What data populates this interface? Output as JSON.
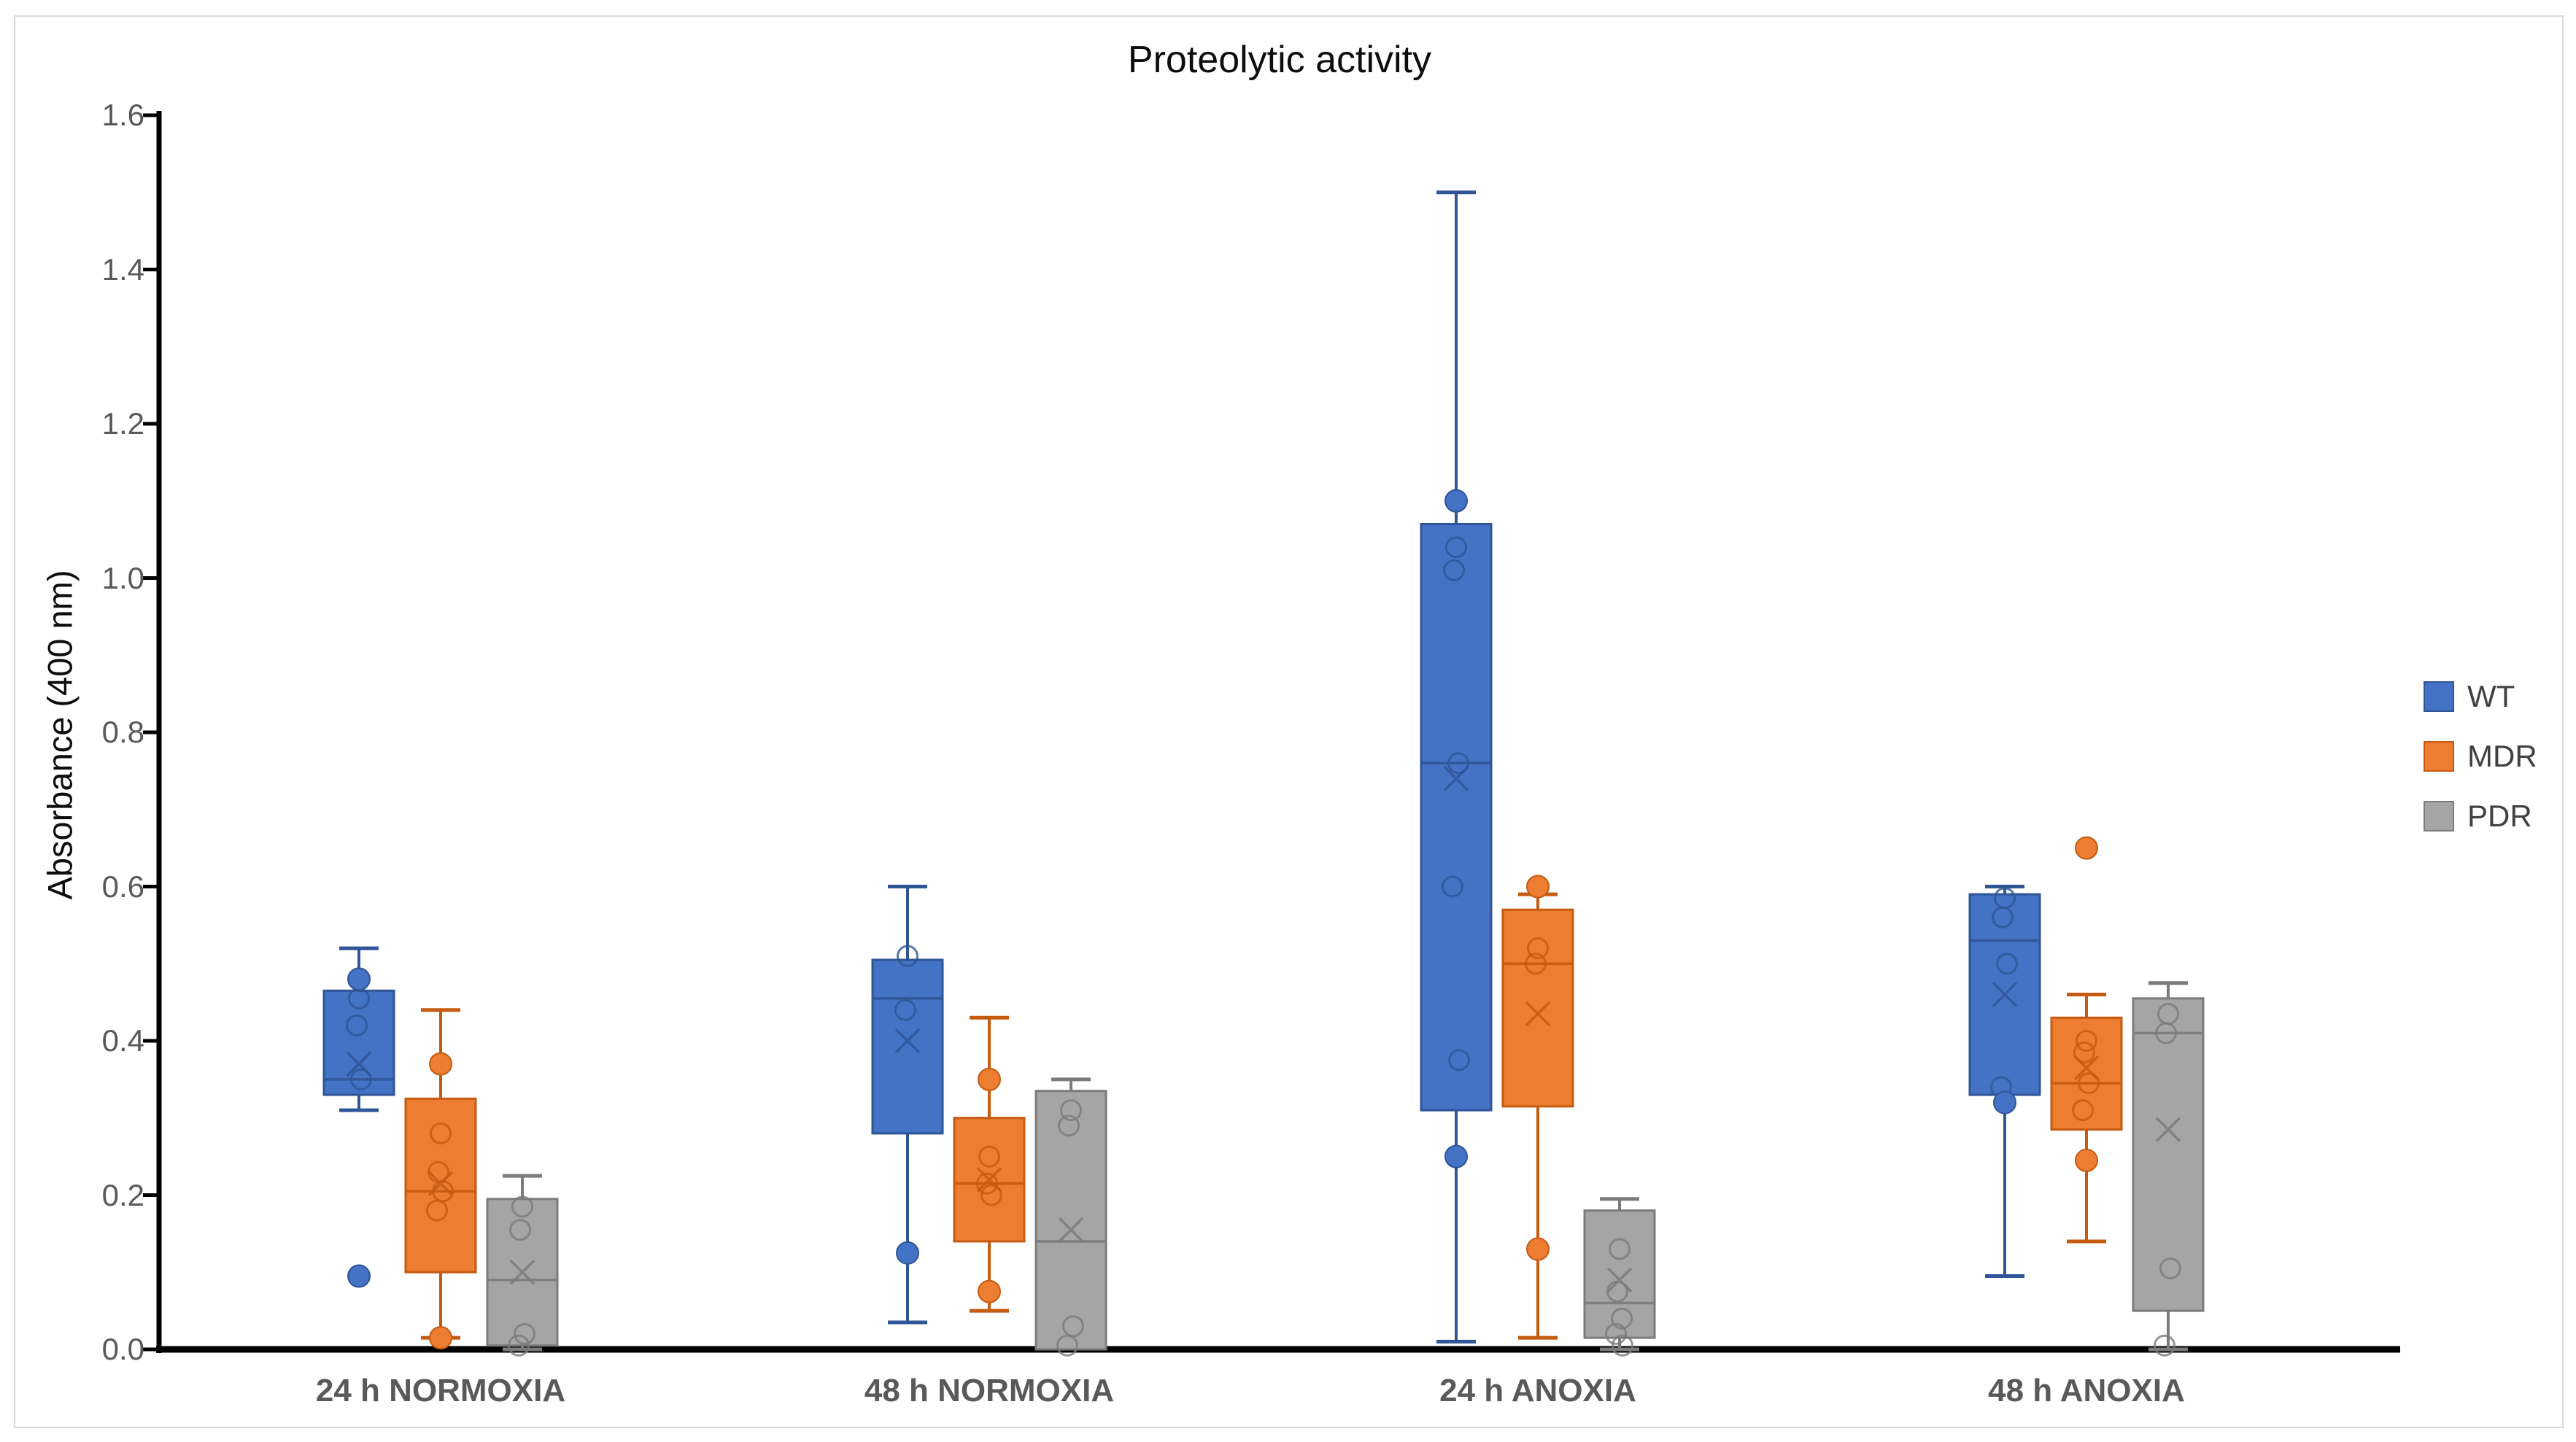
{
  "title": "Proteolytic activity",
  "y_axis": {
    "label": "Absorbance (400 nm)",
    "tick_labels": [
      "1.6",
      "1.4",
      "1.2",
      "1.0",
      "0.8",
      "0.6",
      "0.4",
      "0.2",
      "0.0"
    ],
    "min": 0.0,
    "max": 1.6,
    "step": 0.2
  },
  "x_axis": {
    "categories": [
      "24 h NORMOXIA",
      "48 h NORMOXIA",
      "24 h ANOXIA",
      "48 h ANOXIA"
    ]
  },
  "legend": {
    "items": [
      {
        "label": "WT",
        "color": "#4472C4",
        "border": "#2F5597"
      },
      {
        "label": "MDR",
        "color": "#ED7D31",
        "border": "#C55A11"
      },
      {
        "label": "PDR",
        "color": "#A5A5A5",
        "border": "#7B7B7B"
      }
    ]
  },
  "chart_data": {
    "type": "box",
    "title": "Proteolytic activity",
    "xlabel": "",
    "ylabel": "Absorbance (400 nm)",
    "ylim": [
      0.0,
      1.6
    ],
    "ytick_step": 0.2,
    "grid": false,
    "legend_position": "right",
    "categories": [
      "24 h NORMOXIA",
      "48 h NORMOXIA",
      "24 h ANOXIA",
      "48 h ANOXIA"
    ],
    "series": [
      {
        "name": "WT",
        "fill": "#4472C4",
        "stroke": "#2F5597",
        "boxes": [
          {
            "whisker_low": 0.31,
            "q1": 0.33,
            "median": 0.35,
            "q3": 0.465,
            "whisker_high": 0.52,
            "mean": 0.37,
            "points_open": [
              0.455,
              0.42,
              0.35
            ],
            "points_filled": [
              0.48,
              0.095
            ]
          },
          {
            "whisker_low": 0.035,
            "q1": 0.28,
            "median": 0.455,
            "q3": 0.505,
            "whisker_high": 0.6,
            "mean": 0.4,
            "points_open": [
              0.51,
              0.44
            ],
            "points_filled": [
              0.125
            ]
          },
          {
            "whisker_low": 0.01,
            "q1": 0.31,
            "median": 0.76,
            "q3": 1.07,
            "whisker_high": 1.5,
            "mean": 0.74,
            "points_open": [
              1.04,
              1.01,
              0.76,
              0.6,
              0.375
            ],
            "points_filled": [
              1.1,
              0.25
            ]
          },
          {
            "whisker_low": 0.095,
            "q1": 0.33,
            "median": 0.53,
            "q3": 0.59,
            "whisker_high": 0.6,
            "mean": 0.46,
            "points_open": [
              0.585,
              0.56,
              0.5,
              0.34
            ],
            "points_filled": [
              0.32
            ]
          }
        ]
      },
      {
        "name": "MDR",
        "fill": "#ED7D31",
        "stroke": "#C55A11",
        "boxes": [
          {
            "whisker_low": 0.015,
            "q1": 0.1,
            "median": 0.205,
            "q3": 0.325,
            "whisker_high": 0.44,
            "mean": 0.215,
            "points_open": [
              0.28,
              0.23,
              0.205,
              0.18
            ],
            "points_filled": [
              0.37,
              0.015
            ]
          },
          {
            "whisker_low": 0.05,
            "q1": 0.14,
            "median": 0.215,
            "q3": 0.3,
            "whisker_high": 0.43,
            "mean": 0.22,
            "points_open": [
              0.25,
              0.215,
              0.2
            ],
            "points_filled": [
              0.35,
              0.075
            ]
          },
          {
            "whisker_low": 0.015,
            "q1": 0.315,
            "median": 0.5,
            "q3": 0.57,
            "whisker_high": 0.59,
            "mean": 0.435,
            "points_open": [
              0.52,
              0.5
            ],
            "points_filled": [
              0.6,
              0.13
            ]
          },
          {
            "whisker_low": 0.14,
            "q1": 0.285,
            "median": 0.345,
            "q3": 0.43,
            "whisker_high": 0.46,
            "mean": 0.365,
            "points_open": [
              0.4,
              0.385,
              0.345,
              0.31
            ],
            "points_filled": [
              0.65,
              0.245
            ]
          }
        ]
      },
      {
        "name": "PDR",
        "fill": "#A5A5A5",
        "stroke": "#7B7B7B",
        "boxes": [
          {
            "whisker_low": 0.0,
            "q1": 0.005,
            "median": 0.09,
            "q3": 0.195,
            "whisker_high": 0.225,
            "mean": 0.1,
            "points_open": [
              0.185,
              0.155,
              0.02,
              0.005
            ],
            "points_filled": []
          },
          {
            "whisker_low": 0.0,
            "q1": 0.0,
            "median": 0.14,
            "q3": 0.335,
            "whisker_high": 0.35,
            "mean": 0.155,
            "points_open": [
              0.31,
              0.29,
              0.03,
              0.005
            ],
            "points_filled": []
          },
          {
            "whisker_low": 0.0,
            "q1": 0.015,
            "median": 0.06,
            "q3": 0.18,
            "whisker_high": 0.195,
            "mean": 0.09,
            "points_open": [
              0.13,
              0.075,
              0.04,
              0.02,
              0.005
            ],
            "points_filled": []
          },
          {
            "whisker_low": 0.0,
            "q1": 0.05,
            "median": 0.41,
            "q3": 0.455,
            "whisker_high": 0.475,
            "mean": 0.285,
            "points_open": [
              0.435,
              0.41,
              0.105,
              0.005
            ],
            "points_filled": []
          }
        ]
      }
    ]
  }
}
